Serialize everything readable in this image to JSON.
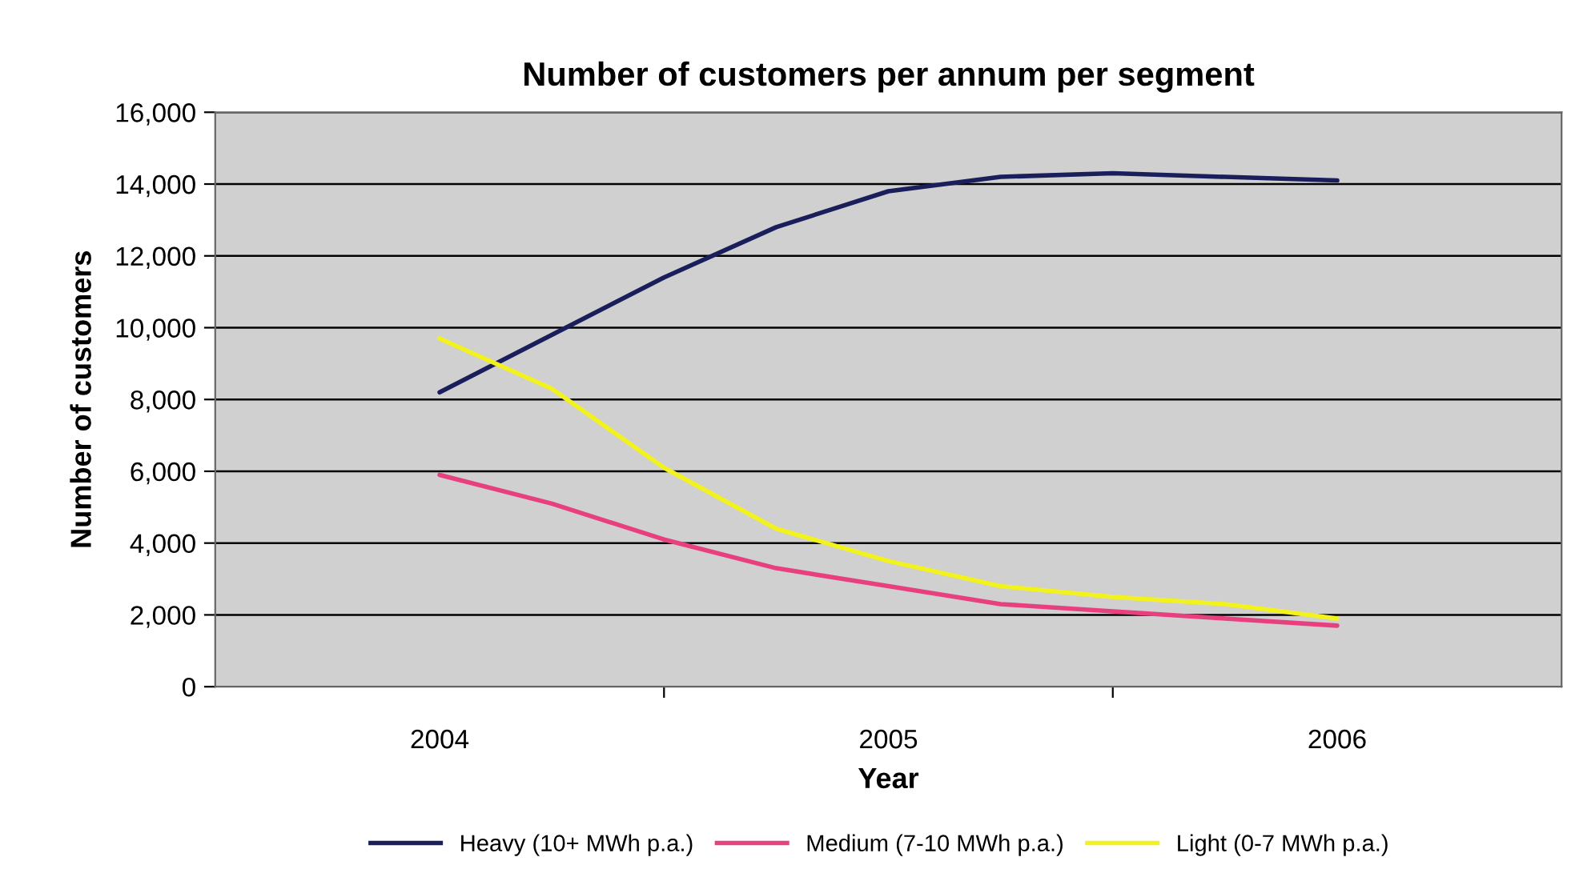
{
  "chart_data": {
    "type": "line",
    "title": "Number of customers per annum per segment",
    "xlabel": "Year",
    "ylabel": "Number of customers",
    "x": [
      2004,
      2004.25,
      2004.5,
      2004.75,
      2005,
      2005.25,
      2005.5,
      2005.75,
      2006
    ],
    "series": [
      {
        "name": "Heavy (10+ MWh p.a.)",
        "color": "#1a1f5c",
        "values": [
          8200,
          9800,
          11400,
          12800,
          13800,
          14200,
          14300,
          14200,
          14100
        ]
      },
      {
        "name": "Medium (7-10 MWh p.a.)",
        "color": "#e8407f",
        "values": [
          5900,
          5100,
          4100,
          3300,
          2800,
          2300,
          2100,
          1900,
          1700
        ]
      },
      {
        "name": "Light (0-7 MWh p.a.)",
        "color": "#f2f21e",
        "values": [
          9700,
          8300,
          6100,
          4400,
          3500,
          2800,
          2500,
          2300,
          1900
        ]
      }
    ],
    "xlim": [
      2003.5,
      2006.5
    ],
    "xticks": [
      2004,
      {
        "value": 2004.5,
        "label": null
      },
      2005,
      {
        "value": 2005.5,
        "label": null
      },
      2006
    ],
    "ylim": [
      0,
      16000
    ],
    "yticks": [
      {
        "value": 0,
        "label": "0"
      },
      {
        "value": 2000,
        "label": "2,000"
      },
      {
        "value": 4000,
        "label": "4,000"
      },
      {
        "value": 6000,
        "label": "6,000"
      },
      {
        "value": 8000,
        "label": "8,000"
      },
      {
        "value": 10000,
        "label": "10,000"
      },
      {
        "value": 12000,
        "label": "12,000"
      },
      {
        "value": 14000,
        "label": "14,000"
      },
      {
        "value": 16000,
        "label": "16,000"
      }
    ],
    "grid": "y",
    "legend": "bottom",
    "marker": "none",
    "line_style": "solid"
  }
}
